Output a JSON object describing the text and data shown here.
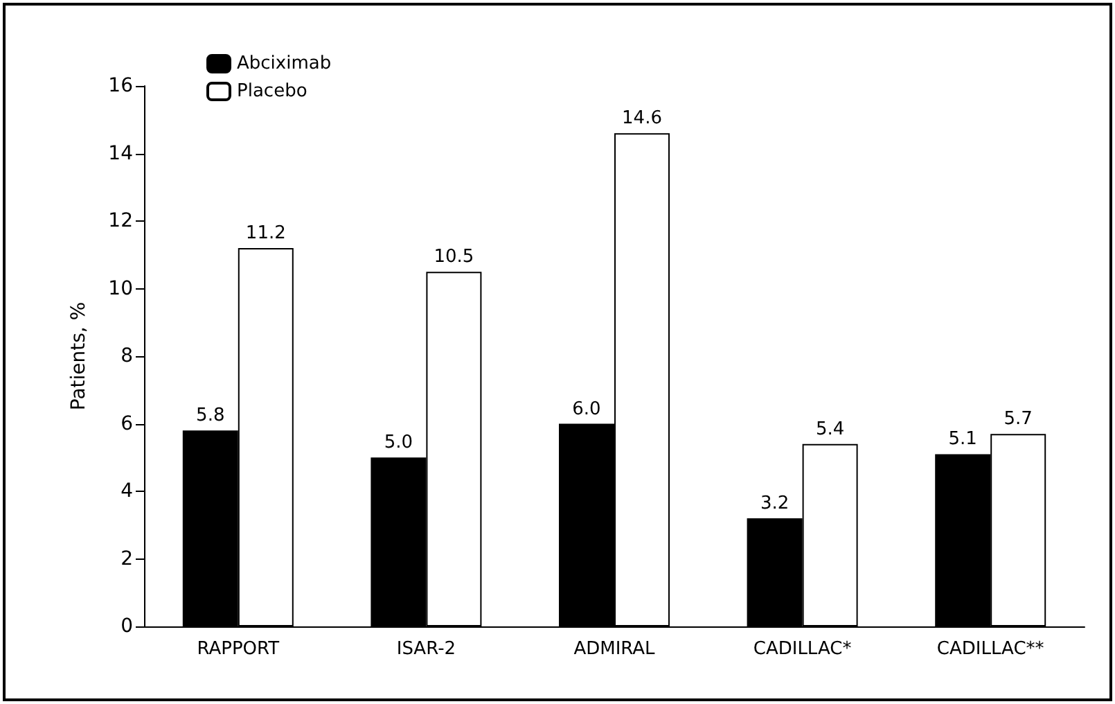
{
  "chart_data": {
    "type": "bar",
    "ylabel": "Patients, %",
    "categories": [
      "RAPPORT",
      "ISAR-2",
      "ADMIRAL",
      "CADILLAC*",
      "CADILLAC**"
    ],
    "series": [
      {
        "name": "Abciximab",
        "color": "#000000",
        "values": [
          5.8,
          5.0,
          6.0,
          3.2,
          5.1
        ],
        "value_labels": [
          "5.8",
          "5.0",
          "6.0",
          "3.2",
          "5.1"
        ]
      },
      {
        "name": "Placebo",
        "color": "#ffffff",
        "values": [
          11.2,
          10.5,
          14.6,
          5.4,
          5.7
        ],
        "value_labels": [
          "11.2",
          "10.5",
          "14.6",
          "5.4",
          "5.7"
        ]
      }
    ],
    "ylim": [
      0,
      16
    ],
    "yticks": [
      0,
      2,
      4,
      6,
      8,
      10,
      12,
      14,
      16
    ],
    "legend": "top left",
    "grid": false
  }
}
